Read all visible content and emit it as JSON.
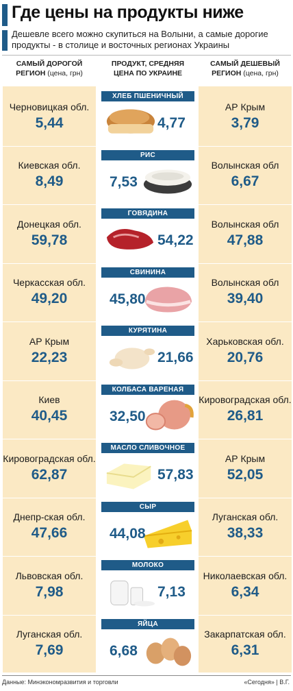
{
  "header": {
    "title": "Где цены на продукты ниже",
    "subtitle": "Дешевле всего можно скупиться на Волыни, а самые дорогие продукты - в столице и восточных регионах  Украины"
  },
  "columns": {
    "max_line1": "САМЫЙ ДОРОГОЙ",
    "max_line2": "РЕГИОН",
    "max_unit": "(цена, грн)",
    "avg_line1": "ПРОДУКТ, СРЕДНЯЯ",
    "avg_line2": "ЦЕНА ПО УКРАИНЕ",
    "min_line1": "САМЫЙ ДЕШЕВЫЙ",
    "min_line2": "РЕГИОН",
    "min_unit": "(цена, грн)"
  },
  "footer": {
    "source": "Данные: Минэкономразвития и торговли",
    "credit": "«Сегодня» | В.Г."
  },
  "colors": {
    "accent": "#1f5b88",
    "cell_bg": "#fbe9c4"
  },
  "chart_data": {
    "type": "table",
    "title": "Где цены на продукты ниже",
    "columns": [
      "Самый дорогой регион",
      "Продукт, средняя цена по Украине",
      "Самый дешевый регион"
    ],
    "rows": [
      {
        "product": "ХЛЕБ ПШЕНИЧНЫЙ",
        "icon": "bread-icon",
        "avg": "4,77",
        "max_region": "Черновицкая обл.",
        "max_price": "5,44",
        "min_region": "АР Крым",
        "min_price": "3,79"
      },
      {
        "product": "РИС",
        "icon": "rice-icon",
        "avg": "7,53",
        "max_region": "Киевская обл.",
        "max_price": "8,49",
        "min_region": "Волынская обл",
        "min_price": "6,67"
      },
      {
        "product": "ГОВЯДИНА",
        "icon": "beef-icon",
        "avg": "54,22",
        "max_region": "Донецкая обл.",
        "max_price": "59,78",
        "min_region": "Волынская обл",
        "min_price": "47,88"
      },
      {
        "product": "СВИНИНА",
        "icon": "pork-icon",
        "avg": "45,80",
        "max_region": "Черкасская обл.",
        "max_price": "49,20",
        "min_region": "Волынская обл",
        "min_price": "39,40"
      },
      {
        "product": "КУРЯТИНА",
        "icon": "chicken-icon",
        "avg": "21,66",
        "max_region": "АР Крым",
        "max_price": "22,23",
        "min_region": "Харьковская обл.",
        "min_price": "20,76"
      },
      {
        "product": "КОЛБАСА ВАРЕНАЯ",
        "icon": "sausage-icon",
        "avg": "32,50",
        "max_region": "Киев",
        "max_price": "40,45",
        "min_region": "Кировоградская обл.",
        "min_price": "26,81"
      },
      {
        "product": "МАСЛО СЛИВОЧНОЕ",
        "icon": "butter-icon",
        "avg": "57,83",
        "max_region": "Кировоградская обл.",
        "max_price": "62,87",
        "min_region": "АР Крым",
        "min_price": "52,05"
      },
      {
        "product": "СЫР",
        "icon": "cheese-icon",
        "avg": "44,08",
        "max_region": "Днепр-ская обл.",
        "max_price": "47,66",
        "min_region": "Луганская обл.",
        "min_price": "38,33"
      },
      {
        "product": "МОЛОКО",
        "icon": "milk-icon",
        "avg": "7,13",
        "max_region": "Львовская обл.",
        "max_price": "7,98",
        "min_region": "Николаевская обл.",
        "min_price": "6,34"
      },
      {
        "product": "ЯЙЦА",
        "icon": "eggs-icon",
        "avg": "6,68",
        "max_region": "Луганская обл.",
        "max_price": "7,69",
        "min_region": "Закарпатская обл.",
        "min_price": "6,31"
      }
    ]
  }
}
